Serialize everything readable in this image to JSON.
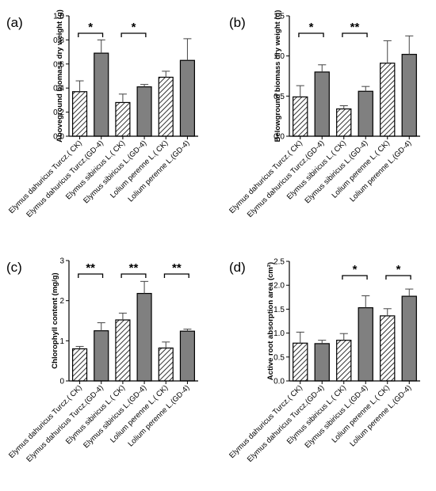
{
  "chart_data": [
    {
      "type": "bar",
      "panel_label": "(a)",
      "ylabel": "Aboveground biomass dry weight (g)",
      "ylim": [
        0,
        1.0
      ],
      "yticks": [
        "0.0",
        "0.2",
        "0.4",
        "0.6",
        "0.8",
        "1.0"
      ],
      "ytick_values": [
        0,
        0.2,
        0.4,
        0.6,
        0.8,
        1.0
      ],
      "categories": [
        "Elymus dahuricus Turcz.( CK)",
        "Elymus dahuricus Turcz.(GD-4)",
        "Elymus sibiricus L.( CK)",
        "Elymus sibiricus L.(GD-4)",
        "Lolium perenne L.( CK)",
        "Lolium perenne L.(GD-4)"
      ],
      "values": [
        0.37,
        0.69,
        0.28,
        0.41,
        0.49,
        0.63
      ],
      "errors": [
        0.09,
        0.11,
        0.07,
        0.02,
        0.05,
        0.18
      ],
      "significance": [
        {
          "from": 0,
          "to": 1,
          "label": "*"
        },
        {
          "from": 2,
          "to": 3,
          "label": "*"
        }
      ]
    },
    {
      "type": "bar",
      "panel_label": "(b)",
      "ylabel": "Belowground biomass dry weight (g)",
      "ylim": [
        0,
        1.5
      ],
      "yticks": [
        "0.0",
        "0.5",
        "1.0",
        "1.5"
      ],
      "ytick_values": [
        0,
        0.5,
        1.0,
        1.5
      ],
      "categories": [
        "Elymus dahuricus Turcz.( CK)",
        "Elymus dahuricus Turcz.(GD-4)",
        "Elymus sibiricus L.( CK)",
        "Elymus sibiricus L.(GD-4)",
        "Lolium perenne L.( CK)",
        "Lolium perenne L.(GD-4)"
      ],
      "values": [
        0.49,
        0.8,
        0.34,
        0.56,
        0.91,
        1.02
      ],
      "errors": [
        0.14,
        0.09,
        0.04,
        0.06,
        0.28,
        0.23
      ],
      "significance": [
        {
          "from": 0,
          "to": 1,
          "label": "*"
        },
        {
          "from": 2,
          "to": 3,
          "label": "**"
        }
      ]
    },
    {
      "type": "bar",
      "panel_label": "(c)",
      "ylabel": "Chlorophyll content (mg/g)",
      "ylim": [
        0,
        3
      ],
      "yticks": [
        "0",
        "1",
        "2",
        "3"
      ],
      "ytick_values": [
        0,
        1,
        2,
        3
      ],
      "categories": [
        "Elymus dahuricus Turcz.( CK)",
        "Elymus dahuricus Turcz.(GD-4)",
        "Elymus sibiricus L.( CK)",
        "Elymus sibiricus L.(GD-4)",
        "Lolium perenne L.( CK)",
        "Lolium perenne L.(GD-4)"
      ],
      "values": [
        0.8,
        1.25,
        1.52,
        2.18,
        0.82,
        1.24
      ],
      "errors": [
        0.06,
        0.2,
        0.17,
        0.3,
        0.15,
        0.05
      ],
      "significance": [
        {
          "from": 0,
          "to": 1,
          "label": "**"
        },
        {
          "from": 2,
          "to": 3,
          "label": "**"
        },
        {
          "from": 4,
          "to": 5,
          "label": "**"
        }
      ]
    },
    {
      "type": "bar",
      "panel_label": "(d)",
      "ylabel": "Active root absorption area (cm²)",
      "ylim": [
        0,
        2.5
      ],
      "yticks": [
        "0.0",
        "0.5",
        "1.0",
        "1.5",
        "2.0",
        "2.5"
      ],
      "ytick_values": [
        0,
        0.5,
        1.0,
        1.5,
        2.0,
        2.5
      ],
      "categories": [
        "Elymus dahuricus Turcz.( CK)",
        "Elymus dahuricus Turcz.(GD-4)",
        "Elymus sibiricus L.( CK)",
        "Elymus sibiricus L.(GD-4)",
        "Lolium perenne L.( CK)",
        "Lolium perenne L.(GD-4)"
      ],
      "values": [
        0.79,
        0.78,
        0.85,
        1.53,
        1.36,
        1.77
      ],
      "errors": [
        0.23,
        0.07,
        0.14,
        0.25,
        0.15,
        0.15
      ],
      "significance": [
        {
          "from": 2,
          "to": 3,
          "label": "*"
        },
        {
          "from": 4,
          "to": 5,
          "label": "*"
        }
      ]
    }
  ],
  "colors": {
    "hatched_fill": "#ffffff",
    "hatch_stroke": "#000000",
    "solid_fill": "#808080",
    "bar_stroke": "#000000",
    "error_bar": "#444444"
  }
}
